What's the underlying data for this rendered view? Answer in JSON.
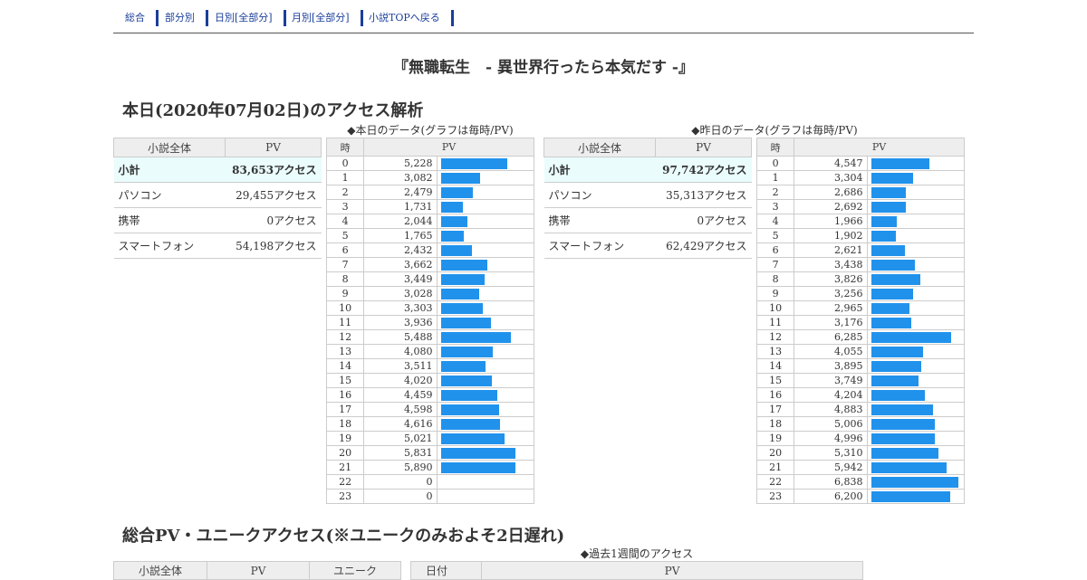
{
  "nav": {
    "items": [
      "総合",
      "部分別",
      "日別[全部分]",
      "月別[全部分]",
      "小説TOPへ戻る"
    ]
  },
  "novel_title": "『無職転生　- 異世界行ったら本気だす -』",
  "today_section": {
    "heading": "本日(2020年07月02日)のアクセス解析",
    "summary_headers": [
      "小説全体",
      "PV"
    ],
    "today_caption": "◆本日のデータ(グラフは毎時/PV)",
    "yesterday_caption": "◆昨日のデータ(グラフは毎時/PV)",
    "hourly_headers": [
      "時",
      "PV"
    ],
    "today_summary": [
      {
        "label": "小計",
        "value": "83,653アクセス"
      },
      {
        "label": "パソコン",
        "value": "29,455アクセス"
      },
      {
        "label": "携帯",
        "value": "0アクセス"
      },
      {
        "label": "スマートフォン",
        "value": "54,198アクセス"
      }
    ],
    "yesterday_summary": [
      {
        "label": "小計",
        "value": "97,742アクセス"
      },
      {
        "label": "パソコン",
        "value": "35,313アクセス"
      },
      {
        "label": "携帯",
        "value": "0アクセス"
      },
      {
        "label": "スマートフォン",
        "value": "62,429アクセス"
      }
    ],
    "today_hourly_display": [
      "5,228",
      "3,082",
      "2,479",
      "1,731",
      "2,044",
      "1,765",
      "2,432",
      "3,662",
      "3,449",
      "3,028",
      "3,303",
      "3,936",
      "5,488",
      "4,080",
      "3,511",
      "4,020",
      "4,459",
      "4,598",
      "4,616",
      "5,021",
      "5,831",
      "5,890",
      "0",
      "0"
    ],
    "yesterday_hourly_display": [
      "4,547",
      "3,304",
      "2,686",
      "2,692",
      "1,966",
      "1,902",
      "2,621",
      "3,438",
      "3,826",
      "3,256",
      "2,965",
      "3,176",
      "6,285",
      "4,055",
      "3,895",
      "3,749",
      "4,204",
      "4,883",
      "5,006",
      "4,996",
      "5,310",
      "5,942",
      "6,838",
      "6,200"
    ]
  },
  "chart_data": [
    {
      "type": "bar",
      "title": "◆本日のデータ(グラフは毎時/PV)",
      "xlabel": "時",
      "ylabel": "PV",
      "categories": [
        "0",
        "1",
        "2",
        "3",
        "4",
        "5",
        "6",
        "7",
        "8",
        "9",
        "10",
        "11",
        "12",
        "13",
        "14",
        "15",
        "16",
        "17",
        "18",
        "19",
        "20",
        "21",
        "22",
        "23"
      ],
      "values": [
        5228,
        3082,
        2479,
        1731,
        2044,
        1765,
        2432,
        3662,
        3449,
        3028,
        3303,
        3936,
        5488,
        4080,
        3511,
        4020,
        4459,
        4598,
        4616,
        5021,
        5831,
        5890,
        0,
        0
      ]
    },
    {
      "type": "bar",
      "title": "◆昨日のデータ(グラフは毎時/PV)",
      "xlabel": "時",
      "ylabel": "PV",
      "categories": [
        "0",
        "1",
        "2",
        "3",
        "4",
        "5",
        "6",
        "7",
        "8",
        "9",
        "10",
        "11",
        "12",
        "13",
        "14",
        "15",
        "16",
        "17",
        "18",
        "19",
        "20",
        "21",
        "22",
        "23"
      ],
      "values": [
        4547,
        3304,
        2686,
        2692,
        1966,
        1902,
        2621,
        3438,
        3826,
        3256,
        2965,
        3176,
        6285,
        4055,
        3895,
        3749,
        4204,
        4883,
        5006,
        4996,
        5310,
        5942,
        6838,
        6200
      ]
    }
  ],
  "total_section": {
    "heading": "総合PV・ユニークアクセス(※ユニークのみおよそ2日遅れ)",
    "week_caption": "◆過去1週間のアクセス",
    "summary_headers": [
      "小説全体",
      "PV",
      "ユニーク"
    ],
    "week_headers": [
      "日付",
      "PV"
    ]
  }
}
